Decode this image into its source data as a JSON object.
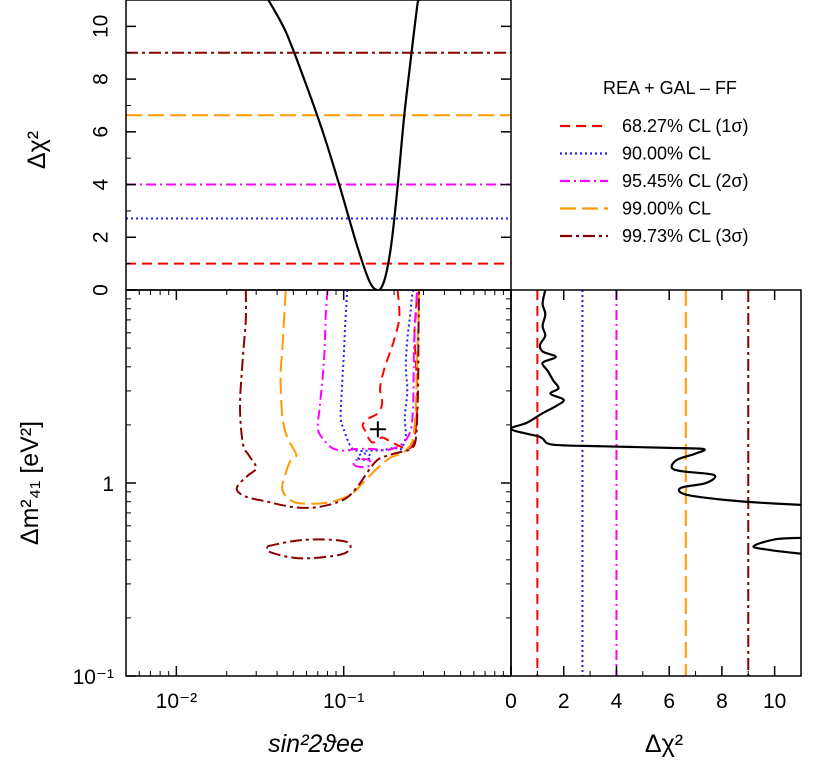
{
  "legend": {
    "title": "REA + GAL – FF",
    "entries": [
      {
        "label": "68.27% CL (1σ)",
        "color": "#ff0000",
        "dash": "10,6"
      },
      {
        "label": "90.00% CL",
        "color": "#1f1fff",
        "dash": "2,3"
      },
      {
        "label": "95.45% CL (2σ)",
        "color": "#ff00ff",
        "dash": "10,4,2,4"
      },
      {
        "label": "99.00% CL",
        "color": "#ff9900",
        "dash": "16,6"
      },
      {
        "label": "99.73% CL (3σ)",
        "color": "#8b0000",
        "dash": "12,4,3,4"
      }
    ]
  },
  "chart_data": [
    {
      "type": "line",
      "panel": "top",
      "xscale": "log",
      "xlim": [
        0.005,
        1
      ],
      "ylim": [
        0,
        11
      ],
      "ylabel": "Δχ²",
      "ytick_labels": [
        "0",
        "2",
        "4",
        "6",
        "8",
        "10"
      ],
      "thresholds": [
        1.0,
        2.71,
        4.0,
        6.63,
        9.0
      ],
      "series": [
        {
          "name": "Δχ² profile",
          "x": [
            0.0355,
            0.045,
            0.058,
            0.075,
            0.095,
            0.12,
            0.142,
            0.158,
            0.17,
            0.182,
            0.195,
            0.212,
            0.23,
            0.25,
            0.268,
            0.277,
            0.282
          ],
          "y": [
            11.0,
            9.8,
            8.0,
            6.0,
            3.9,
            1.7,
            0.35,
            0.0,
            0.15,
            0.8,
            2.0,
            4.2,
            6.6,
            8.6,
            10.2,
            10.9,
            11.0
          ]
        }
      ]
    },
    {
      "type": "contour",
      "panel": "main",
      "xscale": "log",
      "yscale": "log",
      "xlim": [
        0.005,
        1
      ],
      "ylim": [
        0.1,
        10
      ],
      "xlabel": "sin²2ϑee",
      "ylabel": "Δm²₄₁ [eV²]",
      "xtick_labels": [
        "10⁻²",
        "10⁻¹"
      ],
      "ytick_labels": [
        "10⁻¹",
        "1"
      ],
      "best_fit": {
        "x": 0.16,
        "y": 1.9,
        "marker": "+"
      },
      "contours": [
        {
          "level": "68.27% CL (1σ)",
          "color": "#ff0000",
          "paths": [
            {
              "x": [
                0.21,
                0.215,
                0.2,
                0.19,
                0.175,
                0.165,
                0.17,
                0.16,
                0.14,
                0.13,
                0.135,
                0.14,
                0.15,
                0.17,
                0.2,
                0.25,
                0.27,
                0.275,
                0.27,
                0.265,
                0.27,
                0.275
              ],
              "y": [
                10,
                7.2,
                5.5,
                4.8,
                3.9,
                3.1,
                2.6,
                2.3,
                2.15,
                2.0,
                1.85,
                1.72,
                1.62,
                1.72,
                1.6,
                1.52,
                1.95,
                3.0,
                4.2,
                6.0,
                7.5,
                10
              ]
            }
          ]
        },
        {
          "level": "90.00% CL",
          "color": "#1f1fff",
          "paths": [
            {
              "x": [
                0.105,
                0.102,
                0.1,
                0.098,
                0.096,
                0.1,
                0.11,
                0.12,
                0.14,
                0.17,
                0.2,
                0.22,
                0.235,
                0.232,
                0.24,
                0.235,
                0.24,
                0.25,
                0.255,
                0.26
              ],
              "y": [
                10,
                6.5,
                4.5,
                3.3,
                2.2,
                1.9,
                1.55,
                1.47,
                1.47,
                1.48,
                1.52,
                1.5,
                1.75,
                2.2,
                3.0,
                4.0,
                5.5,
                7.5,
                9.0,
                10
              ]
            },
            {
              "x": [
                0.122,
                0.13,
                0.14,
                0.145,
                0.14,
                0.13,
                0.122,
                0.122
              ],
              "y": [
                1.34,
                1.32,
                1.33,
                1.37,
                1.41,
                1.42,
                1.38,
                1.34
              ]
            }
          ]
        },
        {
          "level": "95.45% CL (2σ)",
          "color": "#ff00ff",
          "paths": [
            {
              "x": [
                0.08,
                0.078,
                0.077,
                0.075,
                0.072,
                0.07,
                0.075,
                0.085,
                0.1,
                0.12,
                0.15,
                0.18,
                0.22,
                0.25,
                0.26,
                0.262,
                0.265,
                0.27,
                0.275
              ],
              "y": [
                10,
                7.2,
                5.0,
                3.6,
                2.5,
                1.92,
                1.7,
                1.52,
                1.47,
                1.5,
                1.5,
                1.48,
                1.58,
                1.85,
                2.5,
                4.0,
                6.0,
                8.0,
                10
              ]
            },
            {
              "x": [
                0.115,
                0.125,
                0.14,
                0.145,
                0.14,
                0.125,
                0.115,
                0.115
              ],
              "y": [
                1.24,
                1.21,
                1.22,
                1.27,
                1.32,
                1.33,
                1.29,
                1.24
              ]
            }
          ]
        },
        {
          "level": "99.00% CL",
          "color": "#ff9900",
          "paths": [
            {
              "x": [
                0.045,
                0.044,
                0.043,
                0.042,
                0.043,
                0.046,
                0.052,
                0.048,
                0.045,
                0.043,
                0.05,
                0.065,
                0.085,
                0.11,
                0.13,
                0.16,
                0.19,
                0.22,
                0.24,
                0.26,
                0.27,
                0.275,
                0.28,
                0.282
              ],
              "y": [
                10,
                7.0,
                5.0,
                3.5,
                2.2,
                1.72,
                1.4,
                1.3,
                1.12,
                0.92,
                0.8,
                0.78,
                0.8,
                0.87,
                1.0,
                1.2,
                1.35,
                1.42,
                1.5,
                1.7,
                2.5,
                4.5,
                7.0,
                10
              ]
            }
          ]
        },
        {
          "level": "99.73% CL (3σ)",
          "color": "#8b0000",
          "paths": [
            {
              "x": [
                0.026,
                0.026,
                0.025,
                0.024,
                0.025,
                0.027,
                0.03,
                0.027,
                0.024,
                0.023,
                0.026,
                0.035,
                0.05,
                0.07,
                0.1,
                0.12,
                0.14,
                0.16,
                0.19,
                0.22,
                0.25,
                0.27,
                0.278,
                0.28,
                0.282
              ],
              "y": [
                10,
                7.0,
                4.5,
                2.5,
                1.6,
                1.4,
                1.2,
                1.1,
                1.0,
                0.92,
                0.85,
                0.8,
                0.75,
                0.75,
                0.82,
                0.95,
                1.15,
                1.32,
                1.4,
                1.45,
                1.5,
                1.7,
                3.0,
                6.0,
                10
              ]
            },
            {
              "x": [
                0.035,
                0.05,
                0.07,
                0.1,
                0.11,
                0.1,
                0.07,
                0.05,
                0.036,
                0.035
              ],
              "y": [
                0.47,
                0.5,
                0.51,
                0.5,
                0.47,
                0.43,
                0.41,
                0.41,
                0.44,
                0.47
              ]
            }
          ]
        }
      ]
    },
    {
      "type": "line",
      "panel": "right",
      "yscale": "log",
      "xlim": [
        0,
        11
      ],
      "ylim": [
        0.1,
        10
      ],
      "xlabel": "Δχ²",
      "xtick_labels": [
        "0",
        "2",
        "4",
        "6",
        "8",
        "10"
      ],
      "thresholds": [
        1.0,
        2.71,
        4.0,
        6.63,
        9.0
      ],
      "series": [
        {
          "name": "Δχ² profile",
          "x": [
            1.3,
            1.2,
            1.3,
            1.2,
            1.3,
            1.1,
            1.2,
            1.7,
            1.2,
            1.4,
            1.6,
            1.8,
            1.5,
            2.0,
            1.7,
            1.2,
            0.6,
            0.0,
            1.0,
            1.2,
            1.6,
            3.5,
            6.0,
            7.3,
            7.0,
            6.3,
            6.1,
            6.5,
            7.7,
            7.4,
            6.5,
            6.4,
            6.8,
            8.0,
            9.5,
            11.0
          ],
          "y": [
            10.0,
            8.5,
            7.5,
            6.5,
            5.8,
            5.2,
            4.8,
            4.5,
            4.2,
            3.8,
            3.4,
            3.1,
            2.9,
            2.7,
            2.5,
            2.3,
            2.05,
            1.9,
            1.75,
            1.7,
            1.58,
            1.55,
            1.52,
            1.5,
            1.42,
            1.32,
            1.2,
            1.15,
            1.1,
            1.0,
            0.95,
            0.9,
            0.86,
            0.82,
            0.79,
            0.77
          ]
        },
        {
          "name": "Δχ² profile (low-mass segment)",
          "x": [
            11.0,
            10.0,
            9.2,
            9.8,
            11.0
          ],
          "y": [
            0.52,
            0.51,
            0.47,
            0.45,
            0.43
          ]
        }
      ]
    }
  ]
}
